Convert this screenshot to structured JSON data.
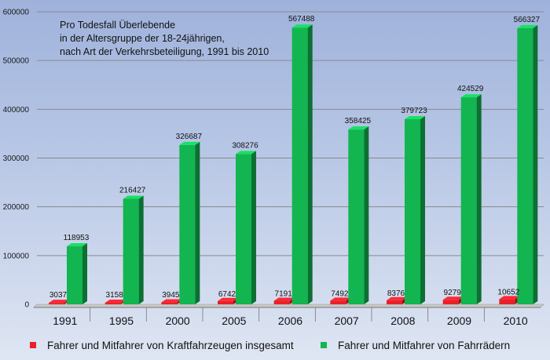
{
  "chart_data": {
    "type": "bar",
    "title_lines": [
      "Pro Todesfall Überlebende",
      "in der Altersgruppe der 18-24jährigen,",
      "nach Art der Verkehrsbeteiligung, 1991 bis 2010"
    ],
    "categories": [
      "1991",
      "1995",
      "2000",
      "2005",
      "2006",
      "2007",
      "2008",
      "2009",
      "2010"
    ],
    "series": [
      {
        "name": "Fahrer und Mitfahrer von Kraftfahrzeugen insgesamt",
        "color": "#e8202a",
        "values": [
          3037,
          3158,
          3945,
          6742,
          7191,
          7492,
          8376,
          9279,
          10652
        ]
      },
      {
        "name": "Fahrer und Mitfahrer von Fahrrädern",
        "color": "#12b550",
        "values": [
          118953,
          216427,
          326687,
          308276,
          567488,
          358425,
          379723,
          424529,
          566327
        ]
      }
    ],
    "ylim": [
      0,
      600000
    ],
    "yticks": [
      "0",
      "100000",
      "200000",
      "300000",
      "400000",
      "500000",
      "600000"
    ],
    "ytick_values": [
      0,
      100000,
      200000,
      300000,
      400000,
      500000,
      600000
    ],
    "grid": true,
    "legend_position": "bottom"
  }
}
